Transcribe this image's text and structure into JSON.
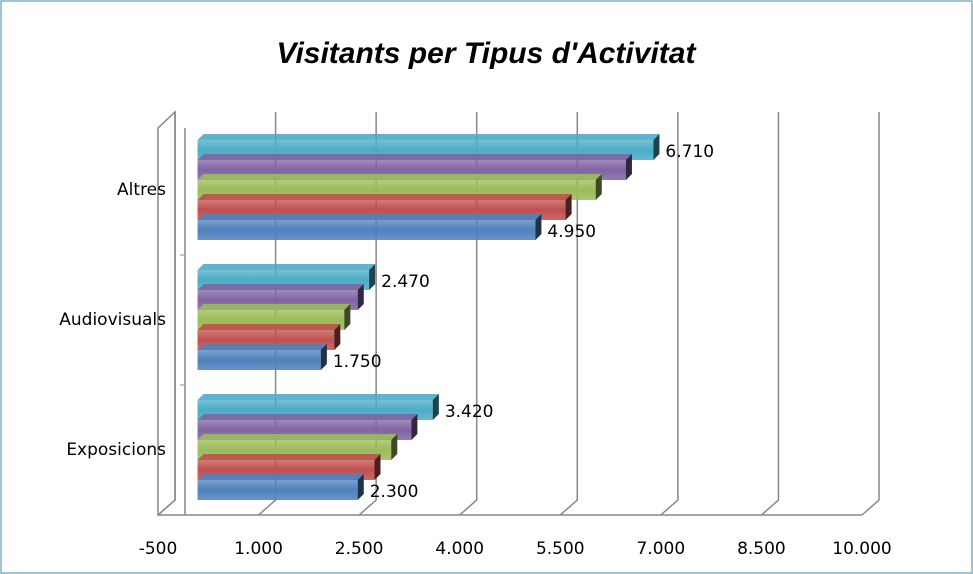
{
  "chart_data": {
    "type": "bar3d",
    "orientation": "horizontal",
    "title": "Visitants per Tipus d'Activitat",
    "categories": [
      "Exposicions",
      "Audiovisuals",
      "Altres"
    ],
    "series": [
      {
        "color": "#4f81bd",
        "values": [
          2300,
          1750,
          4950
        ],
        "value_labels": [
          "2.300",
          "1.750",
          "4.950"
        ]
      },
      {
        "color": "#c0504d",
        "values": [
          2550,
          1950,
          5400
        ]
      },
      {
        "color": "#9bbb59",
        "values": [
          2800,
          2100,
          5850
        ]
      },
      {
        "color": "#8064a2",
        "values": [
          3100,
          2300,
          6300
        ]
      },
      {
        "color": "#4bacc6",
        "values": [
          3420,
          2470,
          6710
        ],
        "value_labels": [
          "3.420",
          "2.470",
          "6.710"
        ]
      }
    ],
    "xlim": [
      -500,
      10000
    ],
    "xticks": [
      -500,
      {
        "value": 1000,
        "label": "1.000"
      },
      {
        "value": 2500,
        "label": "2.500"
      },
      {
        "value": 4000,
        "label": "4.000"
      },
      {
        "value": 5500,
        "label": "5.500"
      },
      {
        "value": 7000,
        "label": "7.000"
      },
      {
        "value": 8500,
        "label": "8.500"
      },
      {
        "value": 10000,
        "label": "10.000"
      }
    ],
    "grid": true
  }
}
